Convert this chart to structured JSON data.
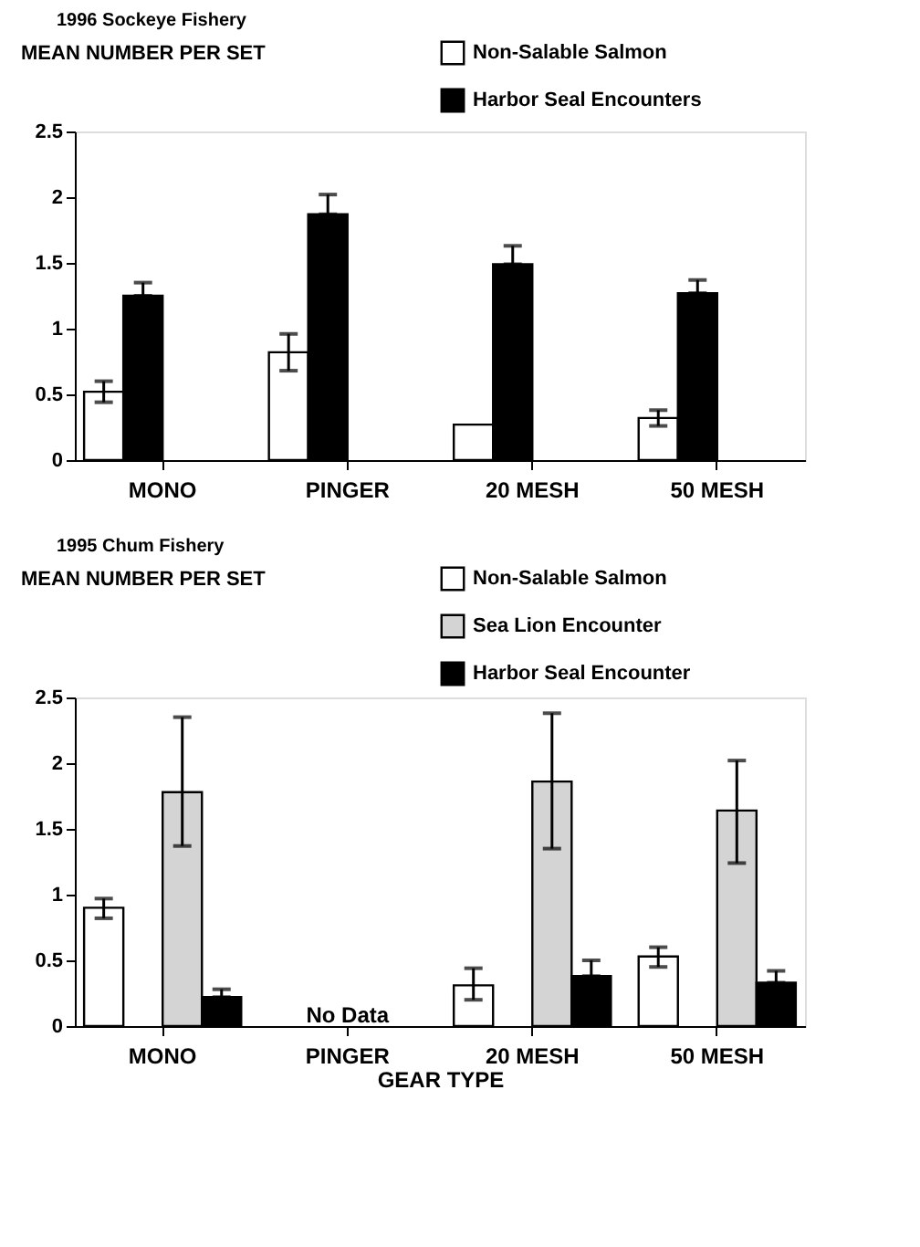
{
  "chart_data": [
    {
      "type": "bar",
      "title": "1996 Sockeye Fishery",
      "ylabel": "MEAN NUMBER PER SET",
      "categories": [
        "MONO",
        "PINGER",
        "20 MESH",
        "50 MESH"
      ],
      "ylim": [
        0,
        2.5
      ],
      "yticks": [
        0,
        0.5,
        1,
        1.5,
        2,
        2.5
      ],
      "legend": "top right",
      "series": [
        {
          "name": "Non-Salable Salmon",
          "color": "#ffffff",
          "values": [
            0.52,
            0.82,
            0.27,
            0.32
          ],
          "errors": [
            0.08,
            0.14,
            null,
            0.06
          ]
        },
        {
          "name": "Harbor Seal Encounters",
          "color": "#000000",
          "values": [
            1.25,
            1.87,
            1.49,
            1.27
          ],
          "errors": [
            [
              1.25,
              1.35
            ],
            [
              1.87,
              2.02
            ],
            [
              1.49,
              1.63
            ],
            [
              1.27,
              1.37
            ]
          ]
        }
      ]
    },
    {
      "type": "bar",
      "title": "1995 Chum Fishery",
      "ylabel": "MEAN NUMBER PER SET",
      "xlabel": "GEAR TYPE",
      "categories": [
        "MONO",
        "PINGER",
        "20 MESH",
        "50 MESH"
      ],
      "ylim": [
        0,
        2.5
      ],
      "yticks": [
        0,
        0.5,
        1,
        1.5,
        2,
        2.5
      ],
      "legend": "top right",
      "annotations": [
        "No Data"
      ],
      "series": [
        {
          "name": "Non-Salable Salmon",
          "color": "#ffffff",
          "values": [
            0.9,
            null,
            0.31,
            0.53
          ],
          "errors": [
            [
              0.82,
              0.97
            ],
            null,
            [
              0.2,
              0.44
            ],
            [
              0.45,
              0.6
            ]
          ]
        },
        {
          "name": "Sea Lion Encounter",
          "color": "#d4d4d4",
          "values": [
            1.78,
            null,
            1.86,
            1.64
          ],
          "errors": [
            [
              1.37,
              2.35
            ],
            null,
            [
              1.35,
              2.38
            ],
            [
              1.24,
              2.02
            ]
          ]
        },
        {
          "name": "Harbor Seal Encounter",
          "color": "#000000",
          "values": [
            0.22,
            null,
            0.38,
            0.33
          ],
          "errors": [
            [
              0.22,
              0.28
            ],
            null,
            [
              0.38,
              0.5
            ],
            [
              0.33,
              0.42
            ]
          ]
        }
      ]
    }
  ]
}
